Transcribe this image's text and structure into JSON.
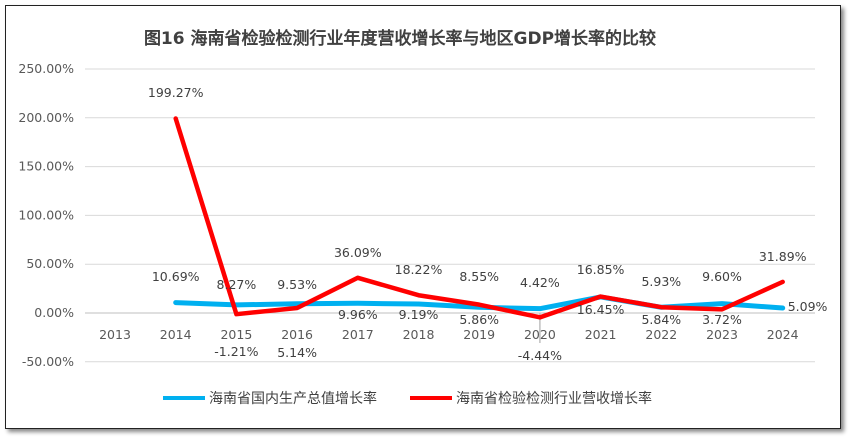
{
  "chart_data": {
    "type": "line",
    "title": "图16  海南省检验检测行业年度营收增长率与地区GDP增长率的比较",
    "categories": [
      "2013",
      "2014",
      "2015",
      "2016",
      "2017",
      "2018",
      "2019",
      "2020",
      "2021",
      "2022",
      "2023",
      "2024"
    ],
    "ylim": [
      -50,
      250
    ],
    "yticks": [
      "-50.00%",
      "0.00%",
      "50.00%",
      "100.00%",
      "150.00%",
      "200.00%",
      "250.00%"
    ],
    "grid": true,
    "legend_position": "bottom",
    "series": [
      {
        "name": "海南省国内生产总值增长率",
        "color": "#00B0F0",
        "values": [
          null,
          10.69,
          8.27,
          9.53,
          9.96,
          9.19,
          5.86,
          4.42,
          16.45,
          5.84,
          9.6,
          5.09
        ],
        "labels": [
          "",
          "10.69%",
          "8.27%",
          "9.53%",
          "9.96%",
          "9.19%",
          "5.86%",
          "4.42%",
          "16.45%",
          "5.84%",
          "9.60%",
          "5.09%"
        ]
      },
      {
        "name": "海南省检验检测行业营收增长率",
        "color": "#FF0000",
        "values": [
          null,
          199.27,
          -1.21,
          5.14,
          36.09,
          18.22,
          8.55,
          -4.44,
          16.85,
          5.93,
          3.72,
          31.89
        ],
        "labels": [
          "",
          "199.27%",
          "-1.21%",
          "5.14%",
          "36.09%",
          "18.22%",
          "8.55%",
          "-4.44%",
          "16.85%",
          "5.93%",
          "3.72%",
          "31.89%"
        ]
      }
    ]
  }
}
